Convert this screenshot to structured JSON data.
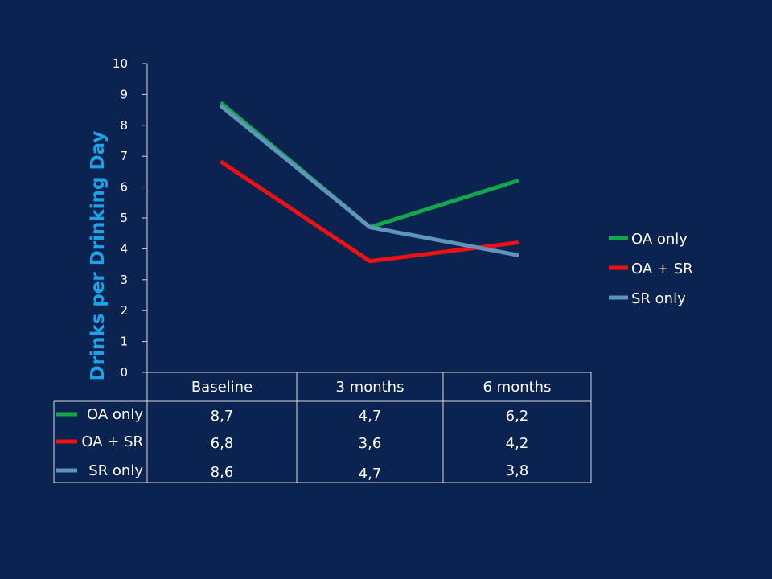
{
  "chart_data": {
    "type": "line",
    "title": "",
    "xlabel": "",
    "ylabel": "Drinks per Drinking Day",
    "categories": [
      "Baseline",
      "3 months",
      "6 months"
    ],
    "ylim": [
      0,
      10
    ],
    "yticks": [
      0,
      1,
      2,
      3,
      4,
      5,
      6,
      7,
      8,
      9,
      10
    ],
    "legend_position": "right",
    "grid": false,
    "data_table": true,
    "series": [
      {
        "name": "OA only",
        "color": "#0fa84a",
        "values": [
          8.7,
          4.7,
          6.2
        ],
        "labels": [
          "8,7",
          "4,7",
          "6,2"
        ]
      },
      {
        "name": "OA + SR",
        "color": "#ee1111",
        "values": [
          6.8,
          3.6,
          4.2
        ],
        "labels": [
          "6,8",
          "3,6",
          "4,2"
        ]
      },
      {
        "name": "SR only",
        "color": "#5f94bd",
        "values": [
          8.6,
          4.7,
          3.8
        ],
        "labels": [
          "8,6",
          "4,7",
          "3,8"
        ]
      }
    ]
  }
}
